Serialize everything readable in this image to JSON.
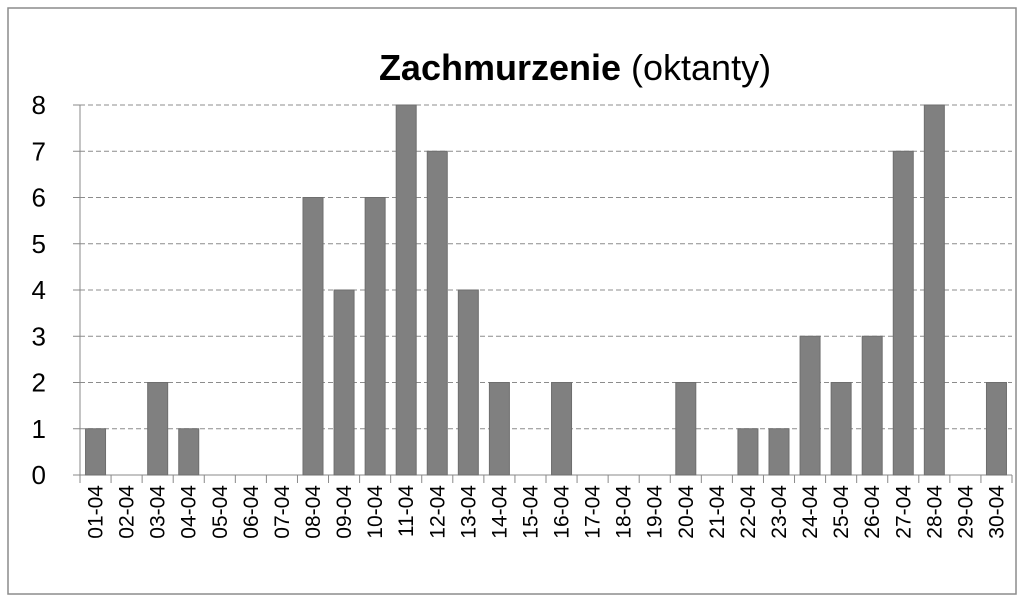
{
  "chart_data": {
    "type": "bar",
    "title": "Zachmurzenie",
    "title_note": "(oktanty)",
    "categories": [
      "01-04",
      "02-04",
      "03-04",
      "04-04",
      "05-04",
      "06-04",
      "07-04",
      "08-04",
      "09-04",
      "10-04",
      "11-04",
      "12-04",
      "13-04",
      "14-04",
      "15-04",
      "16-04",
      "17-04",
      "18-04",
      "19-04",
      "20-04",
      "21-04",
      "22-04",
      "23-04",
      "24-04",
      "25-04",
      "26-04",
      "27-04",
      "28-04",
      "29-04",
      "30-04"
    ],
    "values": [
      1,
      0,
      2,
      1,
      0,
      0,
      0,
      6,
      4,
      6,
      8,
      7,
      4,
      2,
      0,
      2,
      0,
      0,
      0,
      2,
      0,
      1,
      1,
      3,
      2,
      3,
      7,
      8,
      0,
      2
    ],
    "color": "#808080",
    "ylim": [
      0,
      8
    ],
    "yticks": [
      0,
      1,
      2,
      3,
      4,
      5,
      6,
      7,
      8
    ],
    "grid": true
  }
}
